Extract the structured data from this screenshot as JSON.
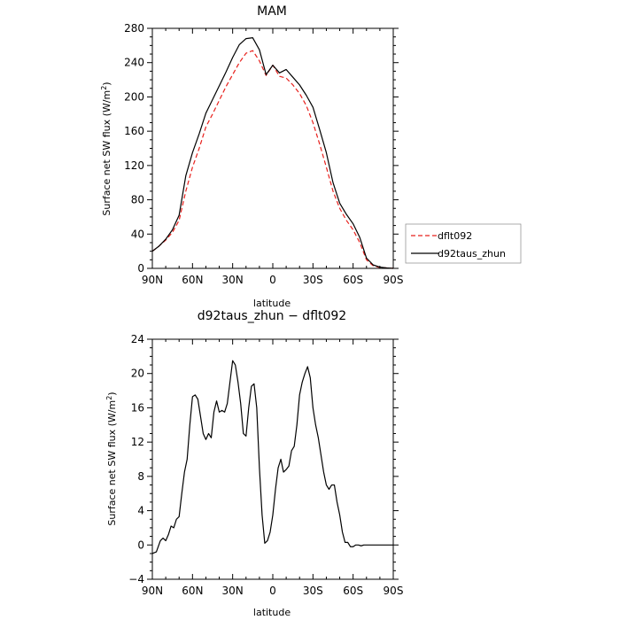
{
  "chart_data": [
    {
      "type": "line",
      "title": "MAM",
      "xlabel": "latitude",
      "ylabel": "Surface net SW flux (W/m",
      "ylabel_sup": "2",
      "ylabel_close": ")",
      "xlim": [
        90,
        -90
      ],
      "ylim": [
        0,
        280
      ],
      "xticks": [
        90,
        60,
        30,
        0,
        -30,
        -60,
        -90
      ],
      "xticklabels": [
        "90N",
        "60N",
        "30N",
        "0",
        "30S",
        "60S",
        "90S"
      ],
      "yticks": [
        0,
        40,
        80,
        120,
        160,
        200,
        240,
        280
      ],
      "yticklabels": [
        "0",
        "40",
        "80",
        "120",
        "160",
        "200",
        "240",
        "280"
      ],
      "legend_position": "outside-right",
      "x": [
        90,
        85,
        80,
        75,
        70,
        65,
        60,
        55,
        50,
        45,
        40,
        35,
        30,
        25,
        20,
        15,
        10,
        5,
        0,
        -5,
        -10,
        -15,
        -20,
        -25,
        -30,
        -35,
        -40,
        -45,
        -50,
        -55,
        -60,
        -65,
        -70,
        -75,
        -80,
        -85,
        -90
      ],
      "series": [
        {
          "name": "dflt092",
          "color": "#e8201c",
          "dash": "dashed",
          "values": [
            20,
            26,
            33,
            42,
            56,
            90,
            118,
            140,
            165,
            180,
            196,
            212,
            226,
            240,
            251,
            254,
            242,
            225,
            237,
            224,
            222,
            214,
            204,
            190,
            170,
            145,
            118,
            90,
            70,
            56,
            45,
            30,
            10,
            3,
            1,
            0.5,
            0
          ]
        },
        {
          "name": "d92taus_zhun",
          "color": "#000000",
          "dash": "solid",
          "values": [
            20,
            26,
            34,
            45,
            62,
            108,
            135,
            157,
            181,
            197,
            213,
            229,
            246,
            261,
            268,
            269,
            255,
            226,
            237,
            228,
            232,
            223,
            214,
            202,
            188,
            162,
            135,
            100,
            76,
            63,
            52,
            36,
            12,
            4,
            1.5,
            0.5,
            0
          ]
        }
      ]
    },
    {
      "type": "line",
      "title": "d92taus_zhun − dflt092",
      "xlabel": "latitude",
      "ylabel": "Surface net SW flux (W/m",
      "ylabel_sup": "2",
      "ylabel_close": ")",
      "xlim": [
        90,
        -90
      ],
      "ylim": [
        -4,
        24
      ],
      "xticks": [
        90,
        60,
        30,
        0,
        -30,
        -60,
        -90
      ],
      "xticklabels": [
        "90N",
        "60N",
        "30N",
        "0",
        "30S",
        "60S",
        "90S"
      ],
      "yticks": [
        -4,
        0,
        4,
        8,
        12,
        16,
        20,
        24
      ],
      "yticklabels": [
        "−4",
        "0",
        "4",
        "8",
        "12",
        "16",
        "20",
        "24"
      ],
      "x": [
        90,
        87,
        84,
        82,
        80,
        78,
        76,
        74,
        72,
        70,
        68,
        66,
        64,
        62,
        60,
        58,
        56,
        54,
        52,
        50,
        48,
        46,
        44,
        42,
        40,
        38,
        36,
        34,
        32,
        30,
        28,
        26,
        24,
        22,
        20,
        18,
        16,
        14,
        12,
        10,
        8,
        6,
        4,
        2,
        0,
        -2,
        -4,
        -6,
        -8,
        -10,
        -12,
        -14,
        -16,
        -18,
        -20,
        -22,
        -24,
        -26,
        -28,
        -30,
        -32,
        -34,
        -36,
        -38,
        -40,
        -42,
        -44,
        -46,
        -48,
        -50,
        -52,
        -54,
        -56,
        -58,
        -60,
        -62,
        -64,
        -66,
        -68,
        -70,
        -72,
        -74,
        -76,
        -78,
        -80,
        -82,
        -84,
        -86,
        -88,
        -90
      ],
      "series": [
        {
          "name": "d92taus_zhun − dflt092",
          "color": "#000000",
          "dash": "solid",
          "values": [
            -1.0,
            -0.8,
            0.5,
            0.8,
            0.5,
            1.2,
            2.2,
            2.0,
            3.0,
            3.3,
            6.0,
            8.5,
            10.0,
            14.0,
            17.3,
            17.5,
            17.0,
            15.0,
            13.0,
            12.3,
            13.0,
            12.5,
            15.5,
            16.8,
            15.5,
            15.7,
            15.5,
            16.5,
            19.0,
            21.5,
            21.0,
            19.0,
            16.5,
            13.0,
            12.7,
            16.0,
            18.5,
            18.8,
            16.0,
            9.0,
            3.5,
            0.2,
            0.5,
            1.5,
            3.5,
            6.5,
            9.0,
            10.0,
            8.5,
            8.8,
            9.2,
            11.0,
            11.5,
            14.0,
            17.5,
            19.0,
            20.0,
            20.8,
            19.5,
            16.0,
            14.0,
            12.5,
            10.5,
            8.5,
            7.0,
            6.5,
            7.0,
            7.0,
            5.0,
            3.5,
            1.5,
            0.3,
            0.3,
            -0.2,
            -0.2,
            0.0,
            0.0,
            -0.1,
            0.0,
            0.0,
            0.0,
            0.0,
            0.0,
            0.0,
            0.0,
            0.0,
            0.0,
            0.0,
            0.0,
            0.0
          ]
        }
      ]
    }
  ]
}
